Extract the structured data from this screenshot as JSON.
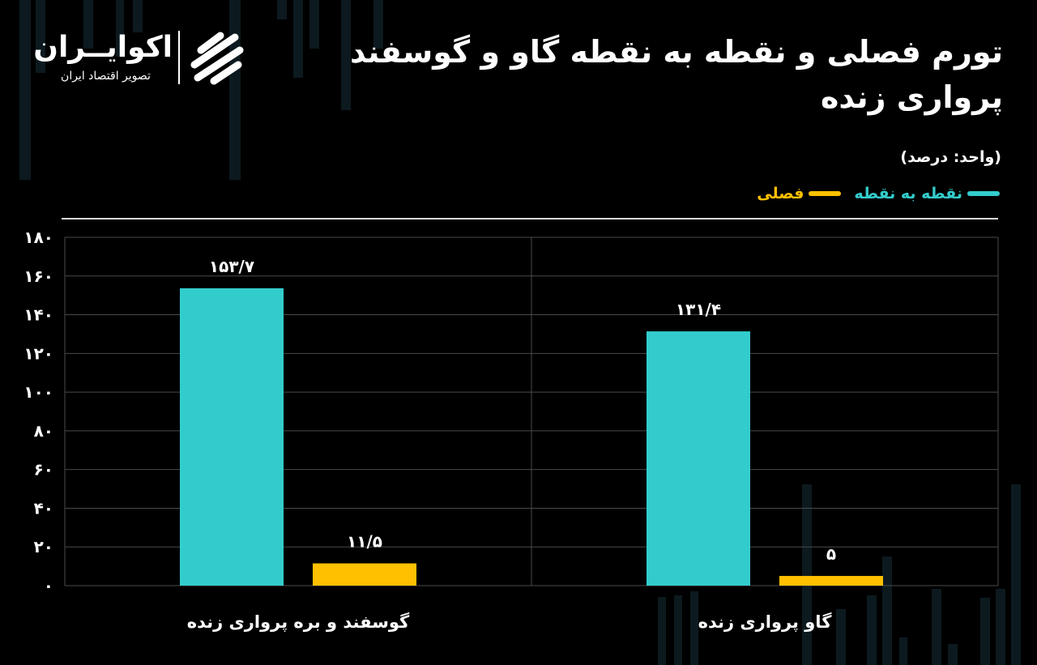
{
  "title": "تورم فصلی و نقطه به نقطه گاو و گوسفند پرواری زنده",
  "unit_label": "(واحد: درصد)",
  "brand": {
    "name": "اکوایــران",
    "tagline": "تصویر اقتصاد ایران"
  },
  "colors": {
    "background": "#000000",
    "point_to_point": "#33cccc",
    "seasonal": "#ffc000",
    "grid": "#555555",
    "text": "#ffffff"
  },
  "chart_data": {
    "type": "bar",
    "categories": [
      "گوسفند و بره پرواری زنده",
      "گاو پرواری زنده"
    ],
    "series": [
      {
        "name": "نقطه به نقطه",
        "values": [
          153.7,
          131.4
        ],
        "labels": [
          "۱۵۳/۷",
          "۱۳۱/۴"
        ],
        "color": "#33cccc"
      },
      {
        "name": "فصلی",
        "values": [
          11.5,
          5
        ],
        "labels": [
          "۱۱/۵",
          "۵"
        ],
        "color": "#ffc000"
      }
    ],
    "ylim": [
      0,
      180
    ],
    "yticks": [
      0,
      20,
      40,
      60,
      80,
      100,
      120,
      140,
      160,
      180
    ],
    "ytick_labels": [
      "۰",
      "۲۰",
      "۴۰",
      "۶۰",
      "۸۰",
      "۱۰۰",
      "۱۲۰",
      "۱۴۰",
      "۱۶۰",
      "۱۸۰"
    ],
    "grid": true,
    "legend_position": "top-right"
  }
}
